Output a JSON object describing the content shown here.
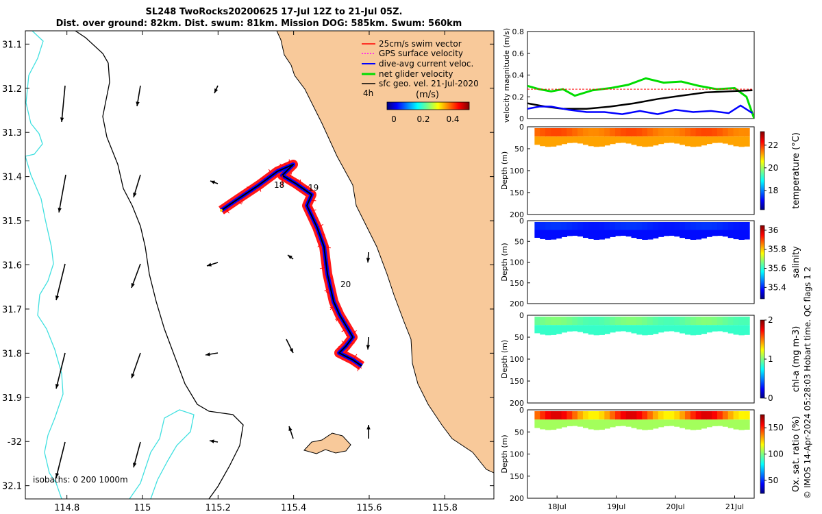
{
  "header": {
    "title_line1": "SL248 TwoRocks20200625 17-Jul 12Z to 21-Jul 05Z.",
    "title_line2": "Dist. over ground: 82km. Dist. swum: 81km. Mission DOG: 585km. Swum: 560km"
  },
  "footer_note": "© IMOS 14-Apr-2024 05:28:03 Hobart time. QC flags 1  2",
  "map": {
    "lon_ticks": [
      "114.8",
      "115",
      "115.2",
      "115.4",
      "115.6",
      "115.8"
    ],
    "lat_ticks": [
      "31.1",
      "31.2",
      "31.3",
      "31.4",
      "31.5",
      "31.6",
      "31.7",
      "31.8",
      "31.9",
      "-32",
      "32.1"
    ],
    "lon_range": [
      114.69,
      115.93
    ],
    "lat_range": [
      -32.13,
      -31.07
    ],
    "isobaths_label": "isobaths: 0   200  1000m",
    "track_day_labels": [
      "18",
      "19",
      "20"
    ],
    "time_step_label": "4h",
    "legend": {
      "items": [
        {
          "label": "25cm/s swim vector",
          "color": "#ff0000"
        },
        {
          "label": "GPS surface velocity",
          "color": "#ff00ff"
        },
        {
          "label": "dive-avg current veloc.",
          "color": "#0000ff"
        },
        {
          "label": "net glider velocity",
          "color": "#00dd00"
        },
        {
          "label": "sfc geo. vel. 21-Jul-2020",
          "color": "#000000"
        }
      ]
    },
    "colorbar": {
      "units": "(m/s)",
      "ticks": [
        "0",
        "0.2",
        "0.4"
      ],
      "range": [
        0,
        0.5
      ]
    },
    "colors": {
      "land": "#f8c99a",
      "isobath_200": "#000000",
      "isobath_1000": "#40e0e0"
    }
  },
  "chart_data": [
    {
      "type": "line",
      "name": "velocity timeseries",
      "ylabel": "velocity magnitude (m/s)",
      "yticks": [
        "0",
        "0.2",
        "0.4",
        "0.6",
        "0.8"
      ],
      "ylim": [
        0,
        0.8
      ],
      "xlim_days": [
        17.5,
        21.33
      ],
      "series": [
        {
          "color": "#00dd00",
          "x": [
            17.5,
            17.7,
            17.9,
            18.1,
            18.3,
            18.6,
            18.9,
            19.2,
            19.5,
            19.8,
            20.1,
            20.4,
            20.7,
            21.0,
            21.2,
            21.33
          ],
          "values": [
            0.3,
            0.27,
            0.25,
            0.27,
            0.21,
            0.26,
            0.28,
            0.31,
            0.37,
            0.33,
            0.34,
            0.3,
            0.27,
            0.28,
            0.2,
            0.0
          ]
        },
        {
          "color": "#ff0000",
          "x": [
            17.5,
            21.3
          ],
          "values": [
            0.27,
            0.27
          ]
        },
        {
          "color": "#000000",
          "x": [
            17.5,
            17.8,
            18.1,
            18.5,
            18.9,
            19.3,
            19.7,
            20.1,
            20.5,
            20.9,
            21.3
          ],
          "values": [
            0.14,
            0.11,
            0.09,
            0.09,
            0.11,
            0.14,
            0.18,
            0.21,
            0.24,
            0.25,
            0.26
          ]
        },
        {
          "color": "#0000ff",
          "x": [
            17.5,
            17.7,
            17.9,
            18.2,
            18.5,
            18.8,
            19.1,
            19.4,
            19.7,
            20.0,
            20.3,
            20.6,
            20.9,
            21.1,
            21.3
          ],
          "values": [
            0.09,
            0.11,
            0.11,
            0.08,
            0.06,
            0.06,
            0.04,
            0.07,
            0.04,
            0.08,
            0.06,
            0.07,
            0.05,
            0.12,
            0.05
          ]
        }
      ]
    },
    {
      "type": "heatmap",
      "name": "temperature section",
      "ylabel": "Depth (m)",
      "yticks": [
        "0",
        "50",
        "100",
        "150",
        "200"
      ],
      "ylim": [
        0,
        200
      ],
      "colorbar_label": "temperature (°C)",
      "colorbar_ticks": [
        "18",
        "20",
        "22"
      ],
      "crange": [
        16.3,
        23.2
      ],
      "xlim_days": [
        17.5,
        21.33
      ],
      "max_depth": 38,
      "base_value": 21.2,
      "surface_value": 21.6
    },
    {
      "type": "heatmap",
      "name": "salinity section",
      "ylabel": "Depth (m)",
      "yticks": [
        "0",
        "50",
        "100",
        "150",
        "200"
      ],
      "ylim": [
        0,
        200
      ],
      "colorbar_label": "salinity",
      "colorbar_ticks": [
        "35.4",
        "35.6",
        "35.8",
        "36"
      ],
      "crange": [
        35.28,
        36.05
      ],
      "xlim_days": [
        17.5,
        21.33
      ],
      "max_depth": 38,
      "base_value": 35.38,
      "surface_value": 35.4
    },
    {
      "type": "heatmap",
      "name": "chlorophyll section",
      "ylabel": "Depth (m)",
      "yticks": [
        "0",
        "50",
        "100",
        "150",
        "200"
      ],
      "ylim": [
        0,
        200
      ],
      "colorbar_label": "chl-a (mg m-3)",
      "colorbar_ticks": [
        "0",
        "1",
        "2"
      ],
      "crange": [
        0,
        2
      ],
      "xlim_days": [
        17.5,
        21.33
      ],
      "max_depth": 38,
      "base_value": 0.85,
      "surface_value": 0.95
    },
    {
      "type": "heatmap",
      "name": "oxygen section",
      "ylabel": "Depth (m)",
      "yticks": [
        "0",
        "50",
        "100",
        "150",
        "200"
      ],
      "ylim": [
        0,
        200
      ],
      "colorbar_label": "Ox. sat. ratio (%)",
      "colorbar_ticks": [
        "50",
        "100",
        "150"
      ],
      "crange": [
        25,
        175
      ],
      "xlim_days": [
        17.5,
        21.33
      ],
      "max_depth": 38,
      "base_value": 105,
      "surface_value": 140
    }
  ],
  "time_axis": {
    "ticks": [
      "18Jul",
      "19Jul",
      "20Jul",
      "21Jul"
    ],
    "tick_days": [
      18,
      19,
      20,
      21
    ]
  }
}
